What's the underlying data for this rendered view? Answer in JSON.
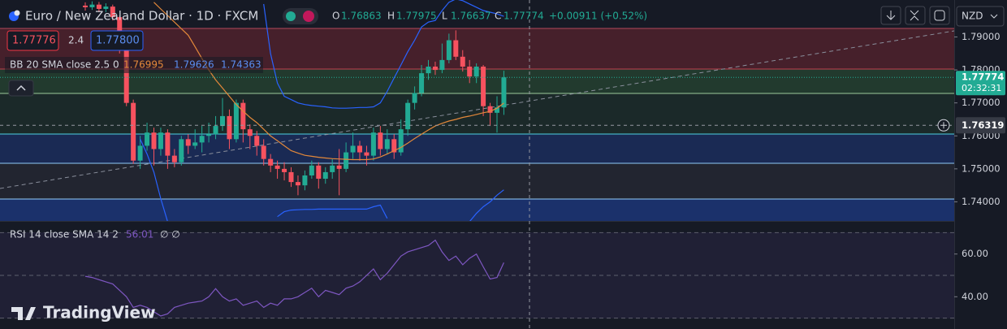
{
  "chart_data": [
    {
      "type": "candlestick",
      "title": "Euro / New Zealand Dollar · 1D · FXCM",
      "indicator": "BB 20 SMA close 2.5 0",
      "categories": [
        null,
        null,
        null,
        null,
        null,
        null,
        null,
        null,
        null,
        null,
        null,
        null,
        null,
        null,
        null,
        null,
        null,
        null,
        null,
        null,
        null,
        null,
        null,
        null,
        null,
        null,
        null,
        null,
        null,
        null,
        null,
        null,
        null,
        null,
        null,
        null,
        null,
        null,
        null,
        null,
        null,
        null,
        null,
        null,
        null,
        null,
        null,
        null,
        null,
        null,
        null,
        null,
        null,
        null,
        null,
        null,
        null,
        null,
        null,
        null,
        null,
        null
      ],
      "open": [
        1.7995,
        1.799,
        1.7998,
        1.7985,
        1.7992,
        1.796,
        1.786,
        1.77,
        1.7525,
        1.757,
        1.761,
        1.756,
        1.761,
        1.754,
        1.752,
        1.759,
        1.757,
        1.758,
        1.76,
        1.7605,
        1.763,
        1.766,
        1.759,
        1.77,
        1.762,
        1.76,
        1.757,
        1.753,
        1.751,
        1.75,
        1.749,
        1.746,
        1.745,
        1.748,
        1.751,
        1.747,
        1.749,
        1.751,
        1.75,
        1.755,
        1.757,
        1.755,
        1.754,
        1.761,
        1.756,
        1.759,
        1.755,
        1.762,
        1.77,
        1.773,
        1.779,
        1.781,
        1.78,
        1.783,
        1.789,
        1.784,
        1.781,
        1.778,
        1.781,
        1.769,
        1.767,
        1.76863
      ],
      "high": [
        1.8005,
        1.8008,
        1.8006,
        1.8002,
        1.7998,
        1.7965,
        1.7868,
        1.771,
        1.76,
        1.764,
        1.7625,
        1.7625,
        1.762,
        1.756,
        1.76,
        1.7605,
        1.762,
        1.763,
        1.764,
        1.766,
        1.7715,
        1.768,
        1.771,
        1.771,
        1.7635,
        1.7615,
        1.759,
        1.7545,
        1.7525,
        1.752,
        1.7505,
        1.748,
        1.7495,
        1.7525,
        1.752,
        1.7505,
        1.753,
        1.756,
        1.758,
        1.761,
        1.7585,
        1.757,
        1.7625,
        1.763,
        1.762,
        1.7605,
        1.765,
        1.771,
        1.775,
        1.7815,
        1.783,
        1.7825,
        1.788,
        1.791,
        1.792,
        1.786,
        1.783,
        1.782,
        1.7815,
        1.77,
        1.772,
        1.77975
      ],
      "low": [
        1.798,
        1.7982,
        1.7975,
        1.7975,
        1.795,
        1.785,
        1.769,
        1.7515,
        1.75,
        1.7555,
        1.751,
        1.754,
        1.75,
        1.7505,
        1.751,
        1.7545,
        1.756,
        1.755,
        1.758,
        1.759,
        1.7615,
        1.756,
        1.758,
        1.758,
        1.756,
        1.754,
        1.751,
        1.749,
        1.747,
        1.7465,
        1.7445,
        1.742,
        1.7435,
        1.747,
        1.744,
        1.7455,
        1.747,
        1.742,
        1.749,
        1.753,
        1.7525,
        1.751,
        1.7525,
        1.754,
        1.7545,
        1.753,
        1.754,
        1.76,
        1.768,
        1.772,
        1.777,
        1.7785,
        1.779,
        1.782,
        1.783,
        1.7795,
        1.776,
        1.776,
        1.766,
        1.763,
        1.761,
        1.76637
      ],
      "close": [
        1.799,
        1.7998,
        1.7985,
        1.7992,
        1.796,
        1.786,
        1.77,
        1.7525,
        1.757,
        1.761,
        1.756,
        1.761,
        1.754,
        1.752,
        1.759,
        1.757,
        1.758,
        1.76,
        1.7605,
        1.763,
        1.766,
        1.759,
        1.77,
        1.762,
        1.76,
        1.757,
        1.753,
        1.751,
        1.75,
        1.749,
        1.746,
        1.745,
        1.748,
        1.751,
        1.747,
        1.749,
        1.751,
        1.75,
        1.755,
        1.757,
        1.755,
        1.754,
        1.761,
        1.756,
        1.759,
        1.755,
        1.762,
        1.77,
        1.773,
        1.779,
        1.781,
        1.78,
        1.783,
        1.789,
        1.784,
        1.781,
        1.778,
        1.781,
        1.769,
        1.767,
        1.76863,
        1.77774
      ],
      "up_color": "#22ab94",
      "down_color": "#f7525f",
      "series": [
        {
          "color": "#e3883a",
          "values": [
            null,
            null,
            null,
            null,
            null,
            null,
            null,
            null,
            null,
            null,
            1.8005,
            1.7985,
            1.7965,
            1.7945,
            1.7925,
            1.7905,
            1.787,
            1.7835,
            1.78,
            1.777,
            1.7745,
            1.772,
            1.7695,
            1.7675,
            1.7656,
            1.764,
            1.762,
            1.76,
            1.7585,
            1.757,
            1.7555,
            1.7548,
            1.7541,
            1.7538,
            1.7535,
            1.7533,
            1.7531,
            1.753,
            1.7529,
            1.7528,
            1.7528,
            1.7528,
            1.753,
            1.7536,
            1.7545,
            1.7555,
            1.7565,
            1.7578,
            1.7592,
            1.7605,
            1.7618,
            1.763,
            1.7638,
            1.7645,
            1.765,
            1.7656,
            1.766,
            1.7665,
            1.767,
            1.7674,
            1.7684,
            1.76995
          ]
        },
        {
          "color": "#2962ff",
          "values": [
            null,
            null,
            null,
            null,
            null,
            null,
            null,
            null,
            null,
            null,
            null,
            null,
            null,
            null,
            null,
            null,
            null,
            null,
            null,
            null,
            null,
            null,
            null,
            null,
            null,
            null,
            1.8,
            1.785,
            1.776,
            1.772,
            1.771,
            1.77,
            1.7695,
            1.7692,
            1.769,
            1.7688,
            1.7685,
            1.7684,
            1.7684,
            1.7685,
            1.7686,
            1.7686,
            1.7688,
            1.77,
            1.7735,
            1.7775,
            1.7815,
            1.7855,
            1.789,
            1.793,
            1.7945,
            1.795,
            1.798,
            1.8005,
            1.8015,
            1.801,
            1.8,
            1.799,
            1.798,
            1.7975,
            1.797,
            1.79626
          ]
        },
        {
          "color": "#2962ff",
          "values": [
            null,
            null,
            null,
            null,
            null,
            null,
            null,
            null,
            1.759,
            1.7545,
            1.749,
            1.741,
            1.734,
            null,
            null,
            null,
            null,
            null,
            null,
            null,
            null,
            null,
            null,
            null,
            null,
            null,
            null,
            null,
            1.7355,
            1.737,
            1.7375,
            1.7376,
            1.7377,
            1.7377,
            1.7378,
            1.7378,
            1.7378,
            1.7378,
            1.7378,
            1.7378,
            1.7378,
            1.7378,
            1.7385,
            1.739,
            1.735,
            null,
            null,
            null,
            null,
            null,
            null,
            null,
            null,
            null,
            null,
            null,
            1.734,
            1.7365,
            1.7385,
            1.74,
            1.742,
            1.74363
          ]
        }
      ],
      "ylim": [
        1.7342,
        1.8012
      ],
      "yticks": [
        {
          "value": 1.74,
          "label": "1.74000"
        },
        {
          "value": 1.75,
          "label": "1.75000"
        },
        {
          "value": 1.76,
          "label": "1.76000"
        },
        {
          "value": 1.77,
          "label": "1.77000"
        },
        {
          "value": 1.78,
          "label": "1.78000"
        },
        {
          "value": 1.79,
          "label": "1.79000"
        }
      ],
      "grid": false,
      "crosshair": 1.76319
    },
    {
      "type": "line",
      "indicator": "RSI 14 close SMA 14 2",
      "extra": "∅ ∅",
      "series": [
        {
          "color": "#7e57c2",
          "values": [
            49.6,
            49,
            48,
            47,
            46,
            43,
            40,
            35,
            36,
            35,
            33,
            31,
            32,
            35,
            36,
            37,
            37.5,
            38,
            40,
            43.8,
            40,
            38,
            39,
            36,
            37,
            38,
            35,
            37,
            36,
            39,
            39,
            40,
            42,
            44,
            40,
            43,
            42,
            41,
            44,
            45,
            47,
            50,
            53,
            48,
            51,
            55,
            59,
            61,
            62,
            63,
            64,
            66.5,
            61,
            57,
            59,
            55,
            58,
            60,
            54,
            48.3,
            49,
            56.01
          ]
        }
      ],
      "levels": [
        70,
        50,
        30
      ],
      "ylim": [
        24.9,
        75.1
      ],
      "yticks": [
        {
          "value": 40,
          "label": "40.00"
        },
        {
          "value": 60,
          "label": "60.00"
        }
      ],
      "grid": false
    }
  ],
  "header": {
    "ohlc_labels": [
      "O",
      "H",
      "L",
      "C"
    ],
    "change": "+0.00911 (+0.52%)",
    "sell": "1.77776",
    "spread": "2.4",
    "buy": "1.77800",
    "timer": "02:32:31",
    "currency": "NZD",
    "brand": "TradingView"
  }
}
